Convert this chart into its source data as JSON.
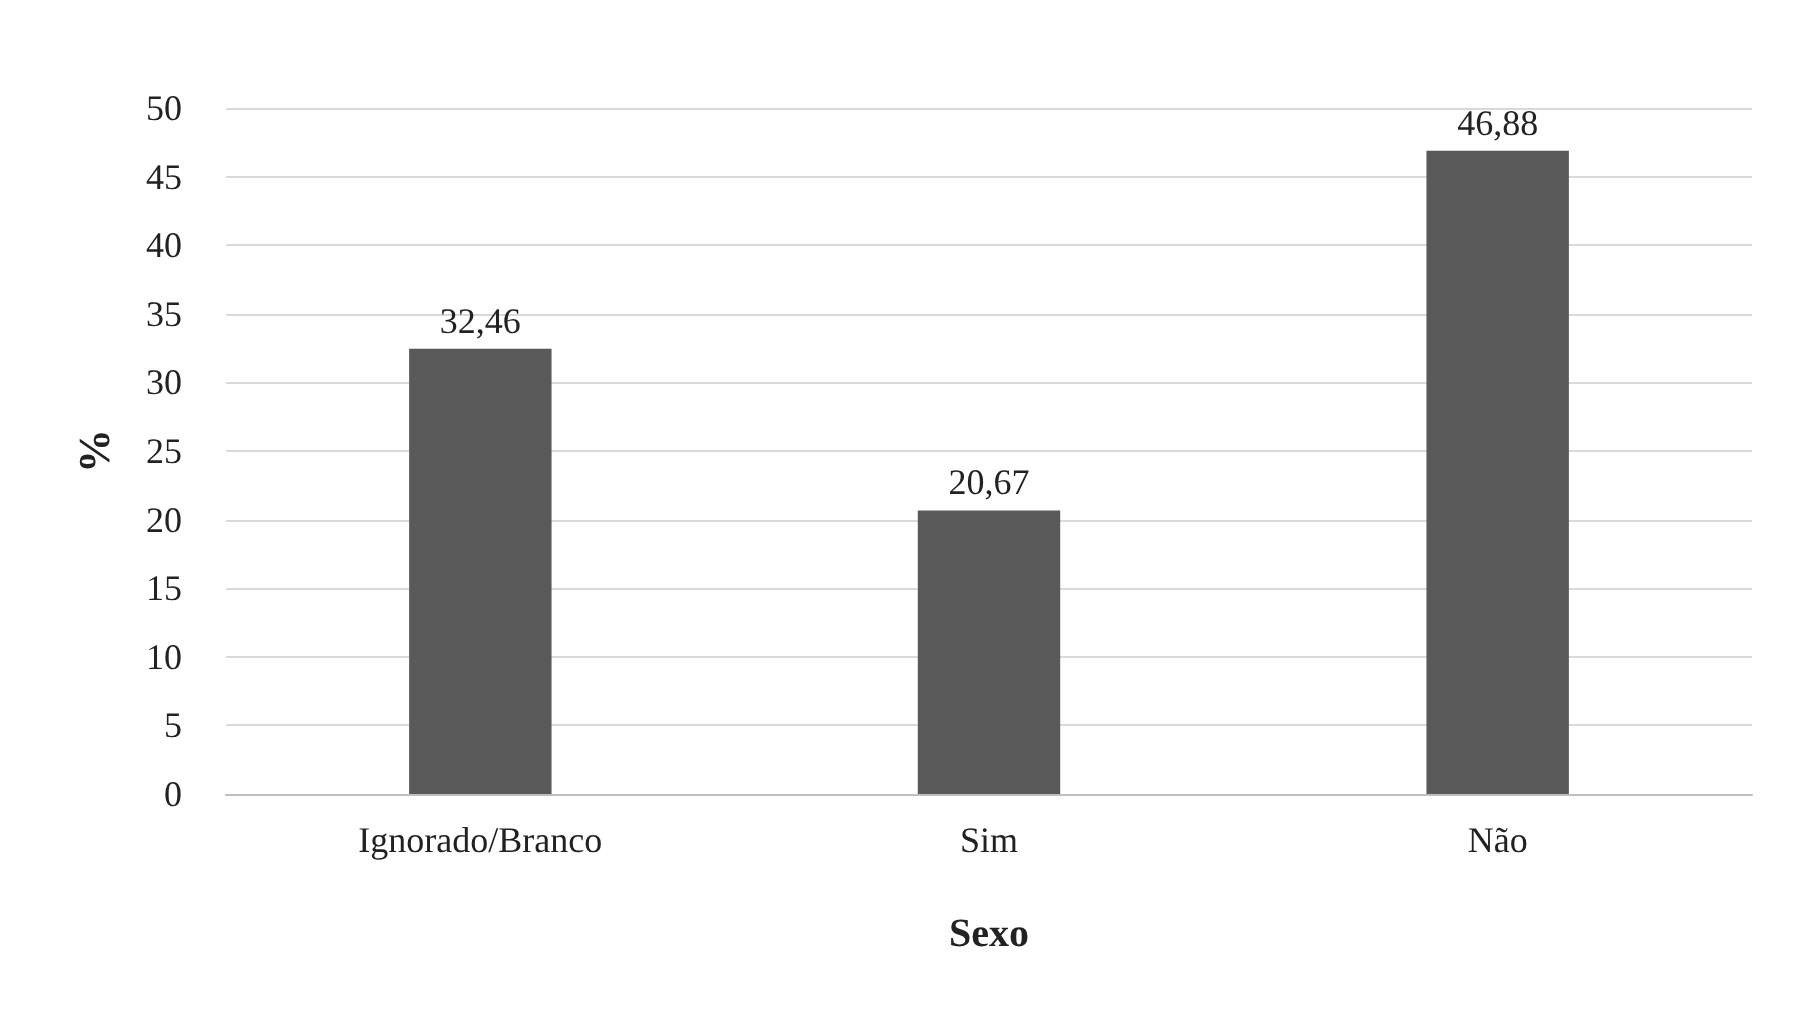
{
  "chart_data": {
    "type": "bar",
    "xlabel": "Sexo",
    "ylabel": "%",
    "categories": [
      "Ignorado/Branco",
      "Sim",
      "Não"
    ],
    "values": [
      32.46,
      20.67,
      46.88
    ],
    "color": "#595959",
    "value_labels": [
      "32,46",
      "20,67",
      "46,88"
    ],
    "ylim": [
      0,
      50
    ],
    "yticks": [
      0,
      5,
      10,
      15,
      20,
      25,
      30,
      35,
      40,
      45,
      50
    ],
    "grid": "y"
  }
}
